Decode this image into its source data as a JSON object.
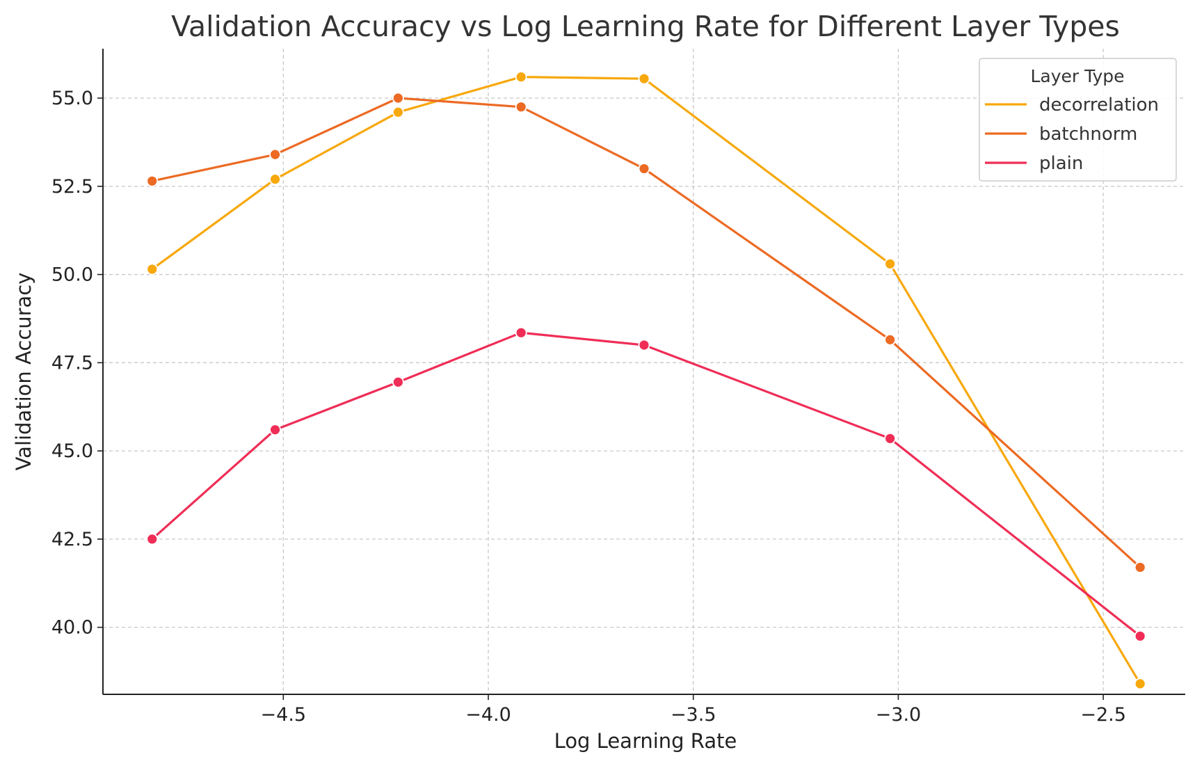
{
  "chart_data": {
    "type": "line",
    "title": "Validation Accuracy vs Log Learning Rate for Different Layer Types",
    "xlabel": "Log Learning Rate",
    "ylabel": "Validation Accuracy",
    "xlim": [
      -4.94,
      -2.3
    ],
    "ylim": [
      38.1,
      56.4
    ],
    "xticks": [
      -4.5,
      -4.0,
      -3.5,
      -3.0,
      -2.5
    ],
    "xtick_labels": [
      "−4.5",
      "−4.0",
      "−3.5",
      "−3.0",
      "−2.5"
    ],
    "yticks": [
      40.0,
      42.5,
      45.0,
      47.5,
      50.0,
      52.5,
      55.0
    ],
    "ytick_labels": [
      "40.0",
      "42.5",
      "45.0",
      "47.5",
      "50.0",
      "52.5",
      "55.0"
    ],
    "grid": true,
    "legend": {
      "title": "Layer Type",
      "position": "top-right"
    },
    "x": [
      -4.82,
      -4.52,
      -4.22,
      -3.92,
      -3.62,
      -3.02,
      -2.41
    ],
    "series": [
      {
        "name": "decorrelation",
        "color": "#f7a80c",
        "values": [
          50.15,
          52.7,
          54.6,
          55.6,
          55.55,
          50.3,
          38.4
        ]
      },
      {
        "name": "batchnorm",
        "color": "#ec6a23",
        "values": [
          52.65,
          53.4,
          55.0,
          54.75,
          53.0,
          48.15,
          41.7
        ]
      },
      {
        "name": "plain",
        "color": "#ef2d56",
        "values": [
          42.5,
          45.6,
          46.95,
          48.35,
          48.0,
          45.35,
          39.75
        ]
      }
    ]
  }
}
